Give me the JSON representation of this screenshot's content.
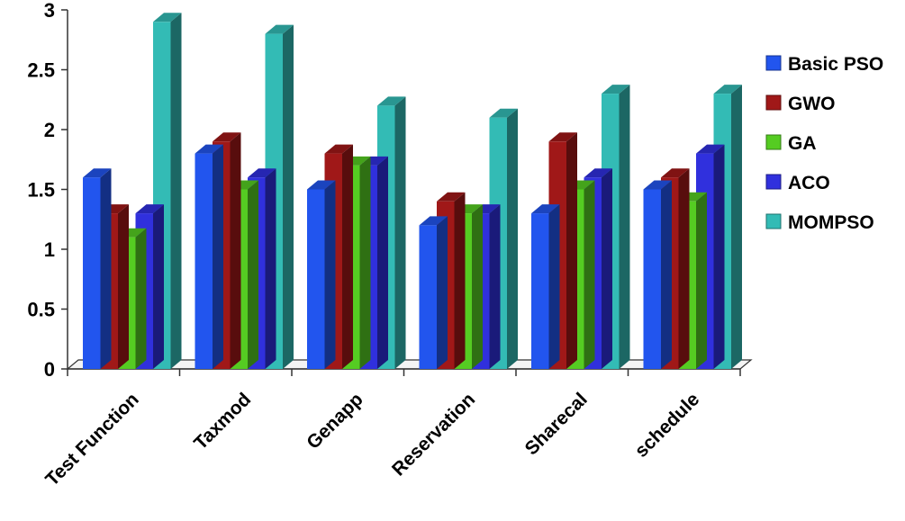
{
  "chart_data": {
    "type": "bar",
    "title": "",
    "xlabel": "",
    "ylabel": "",
    "ylim": [
      0,
      3
    ],
    "yticks": [
      "0",
      "0.5",
      "1",
      "1.5",
      "2",
      "2.5",
      "3"
    ],
    "categories": [
      "Test Function",
      "Taxmod",
      "Genapp",
      "Reservation",
      "Sharecal",
      "schedule"
    ],
    "series": [
      {
        "name": "Basic PSO",
        "color": "#2255ee",
        "values": [
          1.6,
          1.8,
          1.5,
          1.2,
          1.3,
          1.5
        ]
      },
      {
        "name": "GWO",
        "color": "#a01818",
        "values": [
          1.3,
          1.9,
          1.8,
          1.4,
          1.9,
          1.6
        ]
      },
      {
        "name": "GA",
        "color": "#55cc22",
        "values": [
          1.1,
          1.5,
          1.7,
          1.3,
          1.5,
          1.4
        ]
      },
      {
        "name": "ACO",
        "color": "#3030dd",
        "values": [
          1.3,
          1.6,
          1.7,
          1.3,
          1.6,
          1.8
        ]
      },
      {
        "name": "MOMPSO",
        "color": "#33bbb5",
        "values": [
          2.9,
          2.8,
          2.2,
          2.1,
          2.3,
          2.3
        ]
      }
    ],
    "grid": false,
    "legend": "right",
    "style": "3d-clustered-column"
  }
}
